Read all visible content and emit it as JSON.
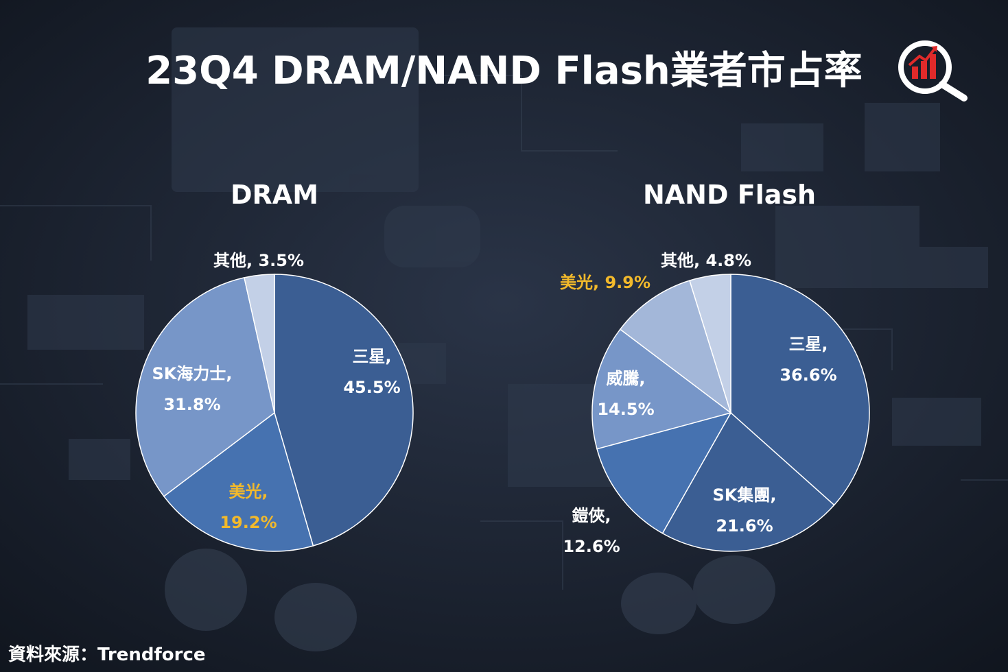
{
  "header": {
    "title": "23Q4 DRAM/NAND Flash業者市占率"
  },
  "footer": {
    "source": "資料來源：Trendforce"
  },
  "icons": {
    "logo": "magnifier-chart-icon"
  },
  "colors": {
    "title": "#ffffff",
    "highlight_label": "#f2b92b",
    "logo_red": "#e02a2a",
    "slice_dark": "#3b5e93",
    "slice_mid": "#4672b0",
    "slice_medlight": "#7796c8",
    "slice_light": "#a3b7d9",
    "slice_lightest": "#c3d0e7"
  },
  "chart_data": [
    {
      "type": "pie",
      "title": "DRAM",
      "slices": [
        {
          "label": "三星",
          "value": 45.5
        },
        {
          "label": "美光",
          "value": 19.2
        },
        {
          "label": "SK海力士",
          "value": 31.8
        },
        {
          "label": "其他",
          "value": 3.5
        }
      ]
    },
    {
      "type": "pie",
      "title": "NAND Flash",
      "slices": [
        {
          "label": "三星",
          "value": 36.6
        },
        {
          "label": "SK集團",
          "value": 21.6
        },
        {
          "label": "鎧俠",
          "value": 12.6
        },
        {
          "label": "威騰",
          "value": 14.5
        },
        {
          "label": "美光",
          "value": 9.9
        },
        {
          "label": "其他",
          "value": 4.8
        }
      ]
    }
  ]
}
